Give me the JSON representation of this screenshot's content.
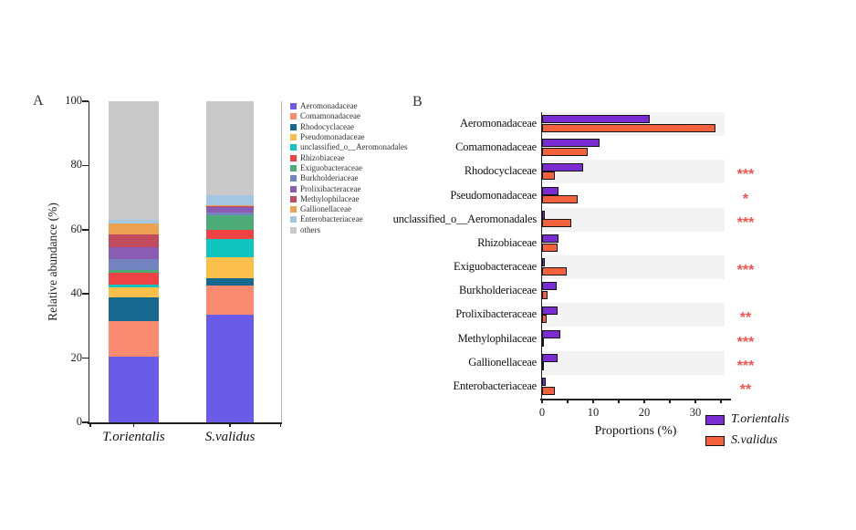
{
  "figure": {
    "panel_a_label": "A",
    "panel_b_label": "B"
  },
  "palette": {
    "t_orientalis": "#7b2bd2",
    "s_validus": "#f4613c",
    "star": "#f0564e",
    "row_stripe": "#f3f3f3",
    "axis": "#222222",
    "others_gray": "#c9c9c9"
  },
  "chart_data": [
    {
      "type": "bar",
      "subtype": "stacked-vertical",
      "panel": "A",
      "title": "",
      "ylabel": "Relative abundance  (%)",
      "ylim": [
        0,
        100
      ],
      "yticks": [
        0,
        20,
        40,
        60,
        80,
        100
      ],
      "grid": false,
      "categories": [
        "T.orientalis",
        "S.validus"
      ],
      "series": [
        {
          "name": "Aeromonadaceae",
          "color": "#6a5ce8",
          "values": [
            20.5,
            33.5
          ]
        },
        {
          "name": "Comamonadaceae",
          "color": "#fa8a70",
          "values": [
            11.0,
            9.0
          ]
        },
        {
          "name": "Rhodocyclaceae",
          "color": "#17688f",
          "values": [
            7.5,
            2.5
          ]
        },
        {
          "name": "Pseudomonadaceae",
          "color": "#fbbf4b",
          "values": [
            3.0,
            6.5
          ]
        },
        {
          "name": "unclassified_o__Aeromonadales",
          "color": "#10c5c0",
          "values": [
            1.0,
            5.5
          ]
        },
        {
          "name": "Rhizobiaceae",
          "color": "#ee4245",
          "values": [
            3.5,
            3.0
          ]
        },
        {
          "name": "Exiguobacteraceae",
          "color": "#4cab77",
          "values": [
            1.0,
            4.5
          ]
        },
        {
          "name": "Burkholderiaceae",
          "color": "#7484c0",
          "values": [
            3.5,
            1.0
          ]
        },
        {
          "name": "Prolixibacteraceae",
          "color": "#8a5cb4",
          "values": [
            3.5,
            1.6
          ]
        },
        {
          "name": "Methylophilaceae",
          "color": "#c24b60",
          "values": [
            4.0,
            0.3
          ]
        },
        {
          "name": "Gallionellaceae",
          "color": "#eca253",
          "values": [
            3.5,
            0.2
          ]
        },
        {
          "name": "Enterobacteriaceae",
          "color": "#a3c6e2",
          "values": [
            1.0,
            3.3
          ]
        },
        {
          "name": "others",
          "color": "#c9c9c9",
          "values": [
            37.0,
            29.1
          ]
        }
      ]
    },
    {
      "type": "bar",
      "subtype": "grouped-horizontal",
      "panel": "B",
      "title": "",
      "xlabel": "Proportions (%)",
      "xlim": [
        0,
        37
      ],
      "xticks_labeled": [
        0,
        10,
        20,
        30
      ],
      "xticks_minor_step": 5,
      "grid": false,
      "legend_position": "bottom-right",
      "categories": [
        "Aeromonadaceae",
        "Comamonadaceae",
        "Rhodocyclaceae",
        "Pseudomonadaceae",
        "unclassified_o__Aeromonadales",
        "Rhizobiaceae",
        "Exiguobacteraceae",
        "Burkholderiaceae",
        "Prolixibacteraceae",
        "Methylophilaceae",
        "Gallionellaceae",
        "Enterobacteriaceae"
      ],
      "series": [
        {
          "name": "T.orientalis",
          "color": "#7b2bd2",
          "values": [
            21.0,
            11.2,
            8.0,
            3.2,
            0.5,
            3.2,
            0.6,
            2.9,
            3.0,
            3.5,
            3.0,
            0.8
          ]
        },
        {
          "name": "S.validus",
          "color": "#f4613c",
          "values": [
            34.0,
            9.0,
            2.5,
            7.0,
            5.8,
            3.1,
            4.8,
            1.1,
            0.9,
            0.3,
            0.2,
            2.5
          ]
        }
      ],
      "significance": [
        "",
        "",
        "***",
        "*",
        "***",
        "",
        "***",
        "",
        "**",
        "***",
        "***",
        "**"
      ]
    }
  ]
}
